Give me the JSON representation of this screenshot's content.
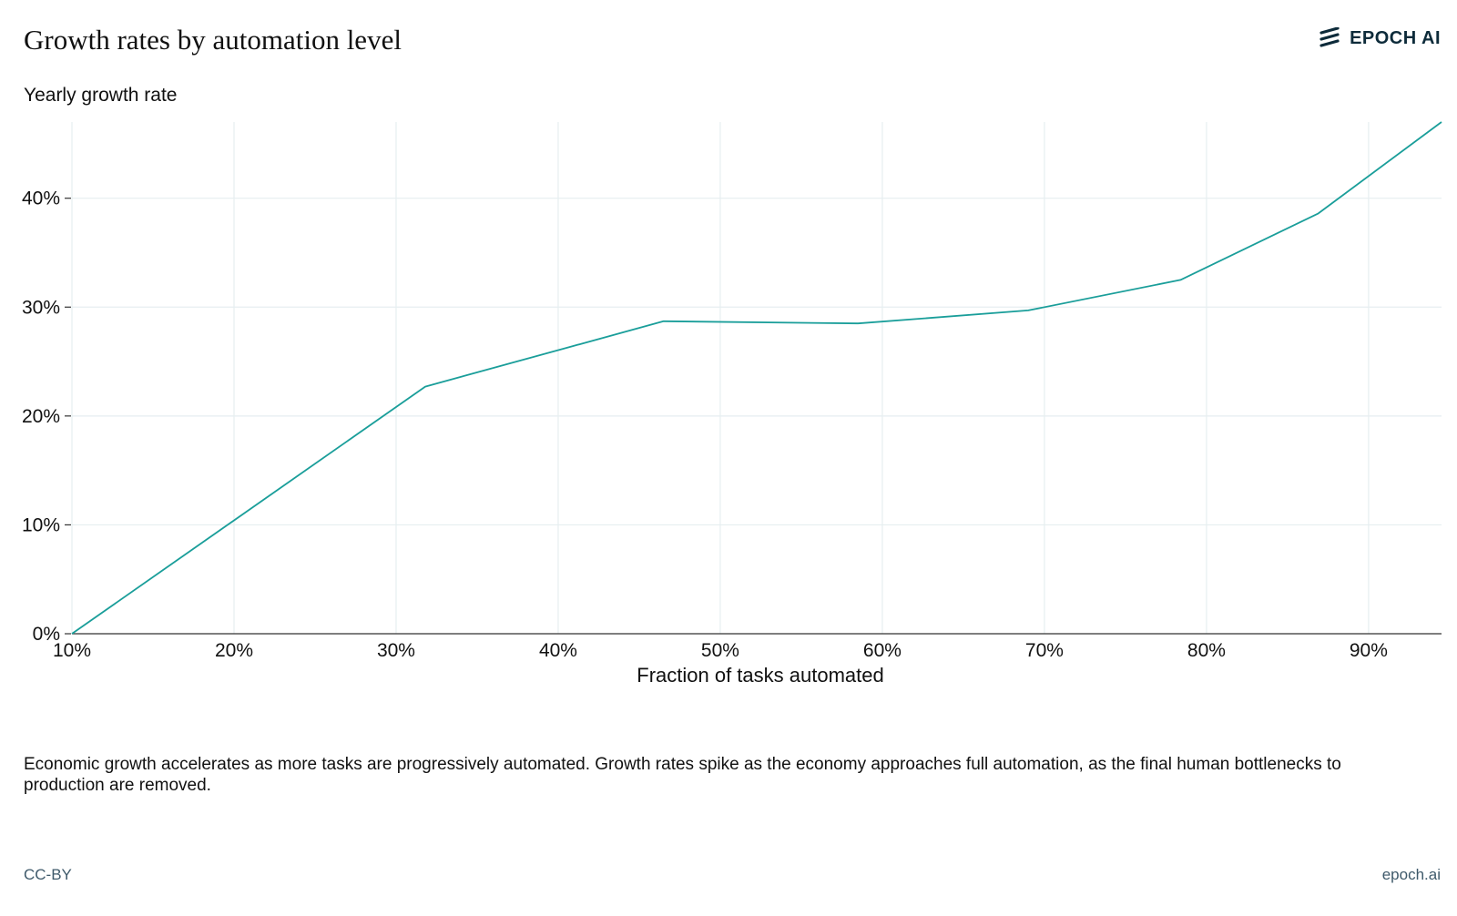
{
  "header": {
    "title": "Growth rates by automation level",
    "logo_text": "EPOCH AI",
    "logo_icon": "epoch-stripes-icon"
  },
  "caption": "Economic growth accelerates as more tasks are progressively automated. Growth rates spike as the economy approaches full automation, as the final human bottlenecks to production are removed.",
  "footer": {
    "license": "CC-BY",
    "site": "epoch.ai"
  },
  "colors": {
    "line": "#1a9e9a",
    "grid": "#e6eef0",
    "axis": "#333333"
  },
  "chart_data": {
    "type": "line",
    "title": "Growth rates by automation level",
    "ylabel": "Yearly growth rate",
    "xlabel": "Fraction of tasks automated",
    "xlim": [
      10,
      94.5
    ],
    "ylim": [
      0,
      47
    ],
    "x_ticks": [
      10,
      20,
      30,
      40,
      50,
      60,
      70,
      80,
      90
    ],
    "x_tick_labels": [
      "10%",
      "20%",
      "30%",
      "40%",
      "50%",
      "60%",
      "70%",
      "80%",
      "90%"
    ],
    "y_ticks": [
      0,
      10,
      20,
      30,
      40
    ],
    "y_tick_labels": [
      "0%",
      "10%",
      "20%",
      "30%",
      "40%"
    ],
    "grid": true,
    "series": [
      {
        "x": [
          10,
          31.8,
          46.5,
          58.5,
          69,
          78.4,
          86.9,
          94.5
        ],
        "y": [
          0,
          22.7,
          28.7,
          28.5,
          29.7,
          32.5,
          38.6,
          47
        ]
      }
    ]
  }
}
